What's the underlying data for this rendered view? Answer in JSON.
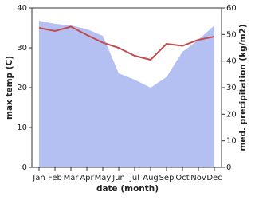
{
  "chart_data": {
    "type": "line",
    "x_label": "date (month)",
    "y_label": "max temp (C)",
    "y2_label": "med. precipitation (kg/m2)",
    "categories": [
      "Jan",
      "Feb",
      "Mar",
      "Apr",
      "May",
      "Jun",
      "Jul",
      "Aug",
      "Sep",
      "Oct",
      "Nov",
      "Dec"
    ],
    "ylim": [
      0,
      40
    ],
    "yticks": [
      0,
      10,
      20,
      30,
      40
    ],
    "y2lim": [
      0,
      60
    ],
    "y2ticks": [
      0,
      10,
      20,
      30,
      40,
      50,
      60
    ],
    "series": [
      {
        "name": "med. precipitation",
        "type": "area",
        "axis": "y2",
        "color": "#b4c0f2",
        "values": [
          55.2,
          54,
          53.4,
          52,
          49.5,
          35.4,
          33,
          30,
          34,
          43.5,
          48,
          53.4
        ]
      },
      {
        "name": "max temp",
        "type": "line",
        "axis": "y",
        "color": "#c24b50",
        "values": [
          35,
          34.2,
          35.3,
          33.2,
          31.3,
          30,
          28,
          27,
          31,
          30.5,
          32,
          32.8
        ]
      }
    ]
  }
}
